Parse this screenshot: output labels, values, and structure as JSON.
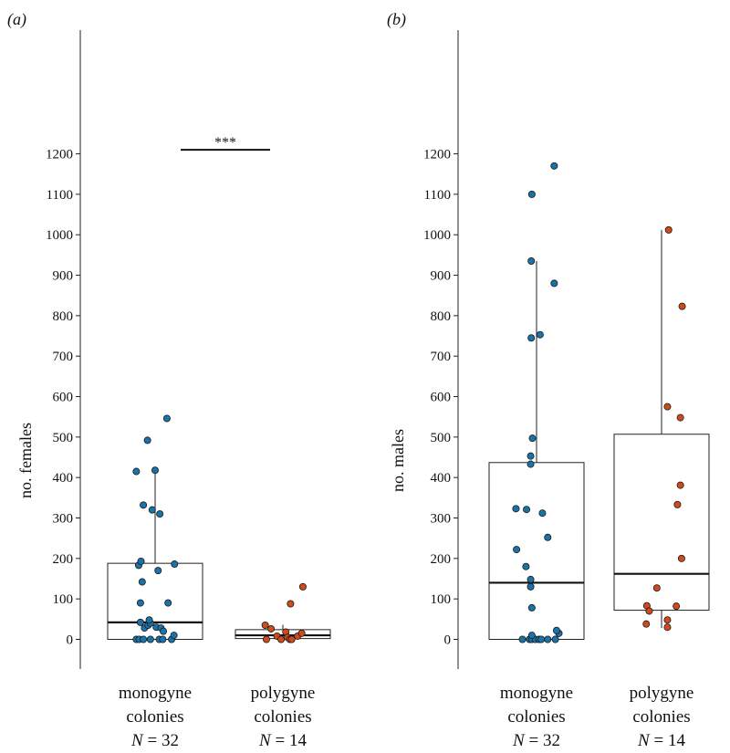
{
  "colors": {
    "monogyne": "#1a73a8",
    "polygyne": "#d04a1c"
  },
  "chart_data": [
    {
      "type": "box",
      "panel_label": "(a)",
      "ylabel": "no. females",
      "ylim": [
        -70,
        1265
      ],
      "yticks": [
        0,
        100,
        200,
        300,
        400,
        500,
        600,
        700,
        800,
        900,
        1000,
        1100,
        1200
      ],
      "significance": {
        "label": "***",
        "y": 1210
      },
      "groups": [
        {
          "line1": "monogyne",
          "line2": "colonies",
          "n_label": "N = 32",
          "color_key": "monogyne",
          "box": {
            "q1": 0,
            "median": 42,
            "q3": 188,
            "whisker_low": 0,
            "whisker_high": 418
          },
          "points": [
            {
              "o": -0.32,
              "v": 0
            },
            {
              "o": -0.27,
              "v": 0
            },
            {
              "o": -0.2,
              "v": 0
            },
            {
              "o": -0.08,
              "v": 0
            },
            {
              "o": 0.07,
              "v": 0
            },
            {
              "o": 0.13,
              "v": 0
            },
            {
              "o": 0.28,
              "v": 0
            },
            {
              "o": 0.32,
              "v": 10
            },
            {
              "o": -0.18,
              "v": 28
            },
            {
              "o": -0.12,
              "v": 35
            },
            {
              "o": -0.08,
              "v": 40
            },
            {
              "o": 0.02,
              "v": 30
            },
            {
              "o": 0.1,
              "v": 28
            },
            {
              "o": 0.14,
              "v": 20
            },
            {
              "o": -0.25,
              "v": 42
            },
            {
              "o": -0.1,
              "v": 48
            },
            {
              "o": 0.22,
              "v": 90
            },
            {
              "o": -0.25,
              "v": 90
            },
            {
              "o": -0.22,
              "v": 142
            },
            {
              "o": 0.05,
              "v": 170
            },
            {
              "o": -0.28,
              "v": 183
            },
            {
              "o": -0.24,
              "v": 193
            },
            {
              "o": 0.33,
              "v": 186
            },
            {
              "o": 0.08,
              "v": 310
            },
            {
              "o": -0.05,
              "v": 320
            },
            {
              "o": -0.2,
              "v": 332
            },
            {
              "o": -0.32,
              "v": 415
            },
            {
              "o": 0.0,
              "v": 418
            },
            {
              "o": -0.13,
              "v": 492
            },
            {
              "o": 0.2,
              "v": 546
            }
          ]
        },
        {
          "line1": "polygyne",
          "line2": "colonies",
          "n_label": "N = 14",
          "color_key": "polygyne",
          "box": {
            "q1": 2,
            "median": 10,
            "q3": 24,
            "whisker_low": 0,
            "whisker_high": 36
          },
          "points": [
            {
              "o": -0.3,
              "v": 35
            },
            {
              "o": -0.2,
              "v": 26
            },
            {
              "o": -0.28,
              "v": 0
            },
            {
              "o": -0.1,
              "v": 8
            },
            {
              "o": -0.03,
              "v": 0
            },
            {
              "o": 0.05,
              "v": 18
            },
            {
              "o": 0.08,
              "v": 5
            },
            {
              "o": 0.12,
              "v": 0
            },
            {
              "o": 0.15,
              "v": 0
            },
            {
              "o": 0.25,
              "v": 8
            },
            {
              "o": 0.32,
              "v": 15
            },
            {
              "o": 0.13,
              "v": 88
            },
            {
              "o": 0.34,
              "v": 130
            }
          ]
        }
      ]
    },
    {
      "type": "box",
      "panel_label": "(b)",
      "ylabel": "no. males",
      "ylim": [
        -70,
        1265
      ],
      "yticks": [
        0,
        100,
        200,
        300,
        400,
        500,
        600,
        700,
        800,
        900,
        1000,
        1100,
        1200
      ],
      "groups": [
        {
          "line1": "monogyne",
          "line2": "colonies",
          "n_label": "N = 32",
          "color_key": "monogyne",
          "box": {
            "q1": 0,
            "median": 140,
            "q3": 437,
            "whisker_low": 0,
            "whisker_high": 935
          },
          "points": [
            {
              "o": -0.24,
              "v": 0
            },
            {
              "o": -0.12,
              "v": 0
            },
            {
              "o": -0.08,
              "v": 0
            },
            {
              "o": -0.02,
              "v": 0
            },
            {
              "o": 0.04,
              "v": 0
            },
            {
              "o": 0.08,
              "v": 0
            },
            {
              "o": 0.19,
              "v": 0
            },
            {
              "o": 0.32,
              "v": 0
            },
            {
              "o": -0.08,
              "v": 10
            },
            {
              "o": 0.38,
              "v": 15
            },
            {
              "o": 0.34,
              "v": 22
            },
            {
              "o": -0.08,
              "v": 78
            },
            {
              "o": -0.1,
              "v": 130
            },
            {
              "o": -0.1,
              "v": 148
            },
            {
              "o": -0.18,
              "v": 180
            },
            {
              "o": -0.34,
              "v": 222
            },
            {
              "o": 0.19,
              "v": 252
            },
            {
              "o": 0.1,
              "v": 312
            },
            {
              "o": -0.35,
              "v": 323
            },
            {
              "o": -0.17,
              "v": 321
            },
            {
              "o": -0.1,
              "v": 433
            },
            {
              "o": -0.1,
              "v": 453
            },
            {
              "o": -0.07,
              "v": 497
            },
            {
              "o": -0.09,
              "v": 745
            },
            {
              "o": 0.06,
              "v": 753
            },
            {
              "o": 0.3,
              "v": 880
            },
            {
              "o": -0.09,
              "v": 935
            },
            {
              "o": -0.08,
              "v": 1100
            },
            {
              "o": 0.3,
              "v": 1170
            }
          ]
        },
        {
          "line1": "polygyne",
          "line2": "colonies",
          "n_label": "N = 14",
          "color_key": "polygyne",
          "box": {
            "q1": 72,
            "median": 162,
            "q3": 507,
            "whisker_low": 28,
            "whisker_high": 1012
          },
          "points": [
            {
              "o": -0.26,
              "v": 38
            },
            {
              "o": -0.25,
              "v": 83
            },
            {
              "o": -0.21,
              "v": 70
            },
            {
              "o": -0.08,
              "v": 127
            },
            {
              "o": 0.1,
              "v": 30
            },
            {
              "o": 0.1,
              "v": 48
            },
            {
              "o": 0.25,
              "v": 82
            },
            {
              "o": 0.1,
              "v": 575
            },
            {
              "o": 0.27,
              "v": 333
            },
            {
              "o": 0.34,
              "v": 200
            },
            {
              "o": 0.32,
              "v": 381
            },
            {
              "o": 0.32,
              "v": 548
            },
            {
              "o": 0.35,
              "v": 823
            },
            {
              "o": 0.12,
              "v": 1012
            }
          ]
        }
      ]
    }
  ]
}
